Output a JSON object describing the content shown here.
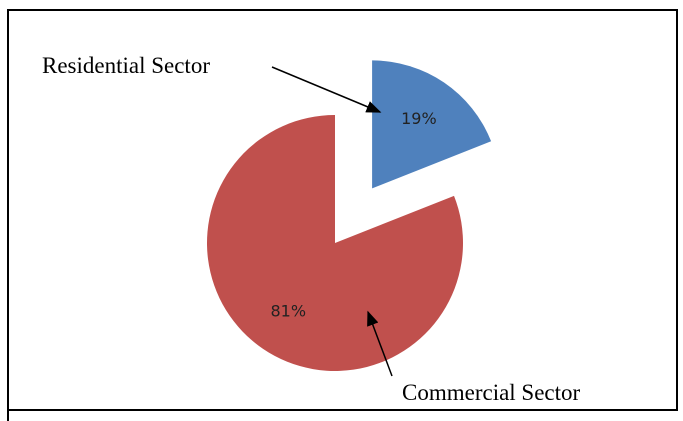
{
  "chart_data": {
    "type": "pie",
    "categories": [
      "Residential Sector",
      "Commercial Sector"
    ],
    "values": [
      19,
      81
    ],
    "value_labels": [
      "19%",
      "81%"
    ],
    "colors": [
      "#4f81bd",
      "#c0504d"
    ],
    "exploded": [
      true,
      false
    ]
  }
}
